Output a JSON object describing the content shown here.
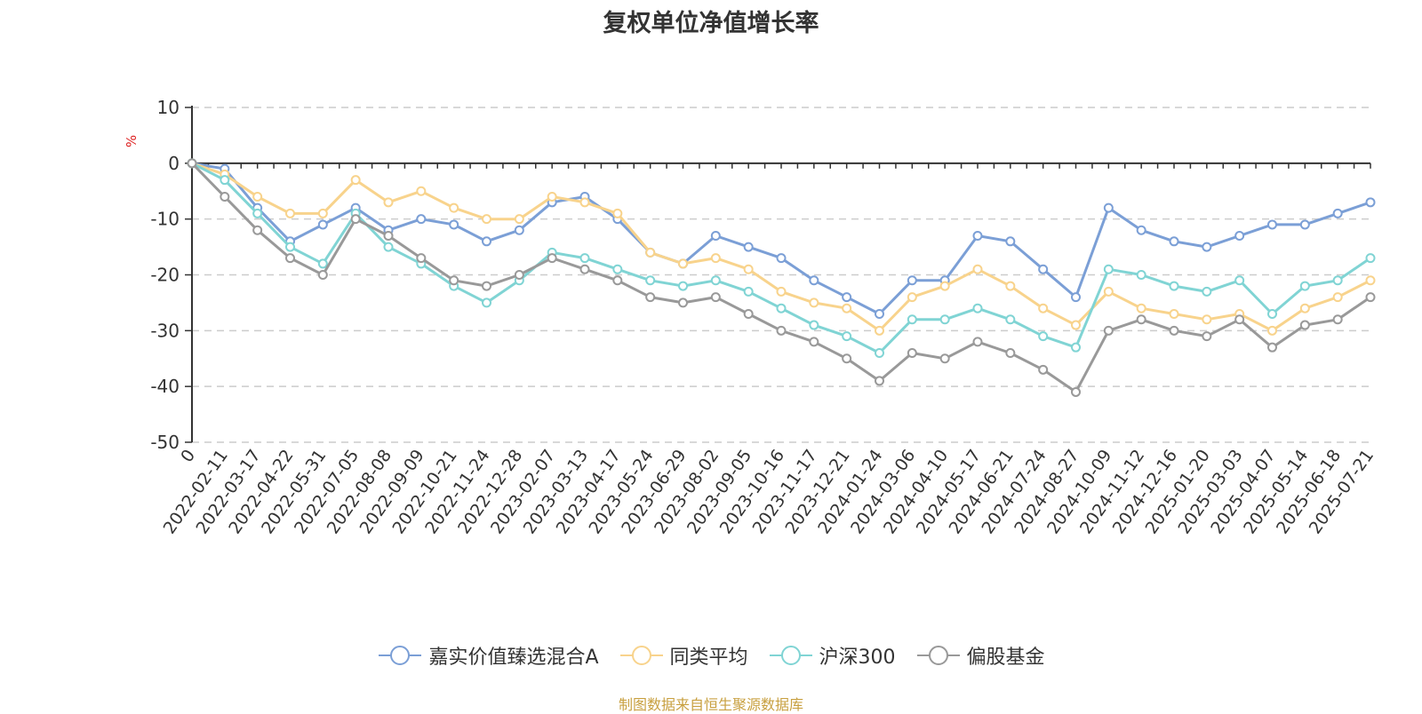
{
  "chart_data": {
    "type": "line",
    "title": "复权单位净值增长率",
    "ylabel": "%",
    "ylim": [
      -50,
      10
    ],
    "yticks": [
      10,
      0,
      -10,
      -20,
      -30,
      -40,
      -50
    ],
    "x_categories": [
      "0",
      "2022-02-11",
      "2022-03-17",
      "2022-04-22",
      "2022-05-31",
      "2022-07-05",
      "2022-08-08",
      "2022-09-09",
      "2022-10-21",
      "2022-11-24",
      "2022-12-28",
      "2023-02-07",
      "2023-03-13",
      "2023-04-17",
      "2023-05-24",
      "2023-06-29",
      "2023-08-02",
      "2023-09-05",
      "2023-10-16",
      "2023-11-17",
      "2023-12-21",
      "2024-01-24",
      "2024-03-06",
      "2024-04-10",
      "2024-05-17",
      "2024-06-21",
      "2024-07-24",
      "2024-08-27",
      "2024-10-09",
      "2024-11-12",
      "2024-12-16",
      "2025-01-20",
      "2025-03-03",
      "2025-04-07",
      "2025-05-14",
      "2025-06-18",
      "2025-07-21"
    ],
    "grid": true,
    "legend_position": "bottom",
    "series": [
      {
        "name": "嘉实价值臻选混合A",
        "color": "#7b9fd6",
        "values": [
          0,
          -1,
          -8,
          -14,
          -11,
          -8,
          -12,
          -10,
          -11,
          -14,
          -12,
          -7,
          -6,
          -10,
          -16,
          -18,
          -13,
          -15,
          -17,
          -21,
          -24,
          -27,
          -21,
          -21,
          -13,
          -14,
          -19,
          -24,
          -8,
          -12,
          -14,
          -15,
          -13,
          -11,
          -11,
          -9,
          -7
        ]
      },
      {
        "name": "同类平均",
        "color": "#f8d38c",
        "values": [
          0,
          -2,
          -6,
          -9,
          -9,
          -3,
          -7,
          -5,
          -8,
          -10,
          -10,
          -6,
          -7,
          -9,
          -16,
          -18,
          -17,
          -19,
          -23,
          -25,
          -26,
          -30,
          -24,
          -22,
          -19,
          -22,
          -26,
          -29,
          -23,
          -26,
          -27,
          -28,
          -27,
          -30,
          -26,
          -24,
          -21
        ]
      },
      {
        "name": "沪深300",
        "color": "#80d4d4",
        "values": [
          0,
          -3,
          -9,
          -15,
          -18,
          -9,
          -15,
          -18,
          -22,
          -25,
          -21,
          -16,
          -17,
          -19,
          -21,
          -22,
          -21,
          -23,
          -26,
          -29,
          -31,
          -34,
          -28,
          -28,
          -26,
          -28,
          -31,
          -33,
          -19,
          -20,
          -22,
          -23,
          -21,
          -27,
          -22,
          -21,
          -17
        ]
      },
      {
        "name": "偏股基金",
        "color": "#999999",
        "values": [
          0,
          -6,
          -12,
          -17,
          -20,
          -10,
          -13,
          -17,
          -21,
          -22,
          -20,
          -17,
          -19,
          -21,
          -24,
          -25,
          -24,
          -27,
          -30,
          -32,
          -35,
          -39,
          -34,
          -35,
          -32,
          -34,
          -37,
          -41,
          -30,
          -28,
          -30,
          -31,
          -28,
          -33,
          -29,
          -28,
          -24
        ]
      }
    ]
  },
  "source_text": "制图数据来自恒生聚源数据库"
}
